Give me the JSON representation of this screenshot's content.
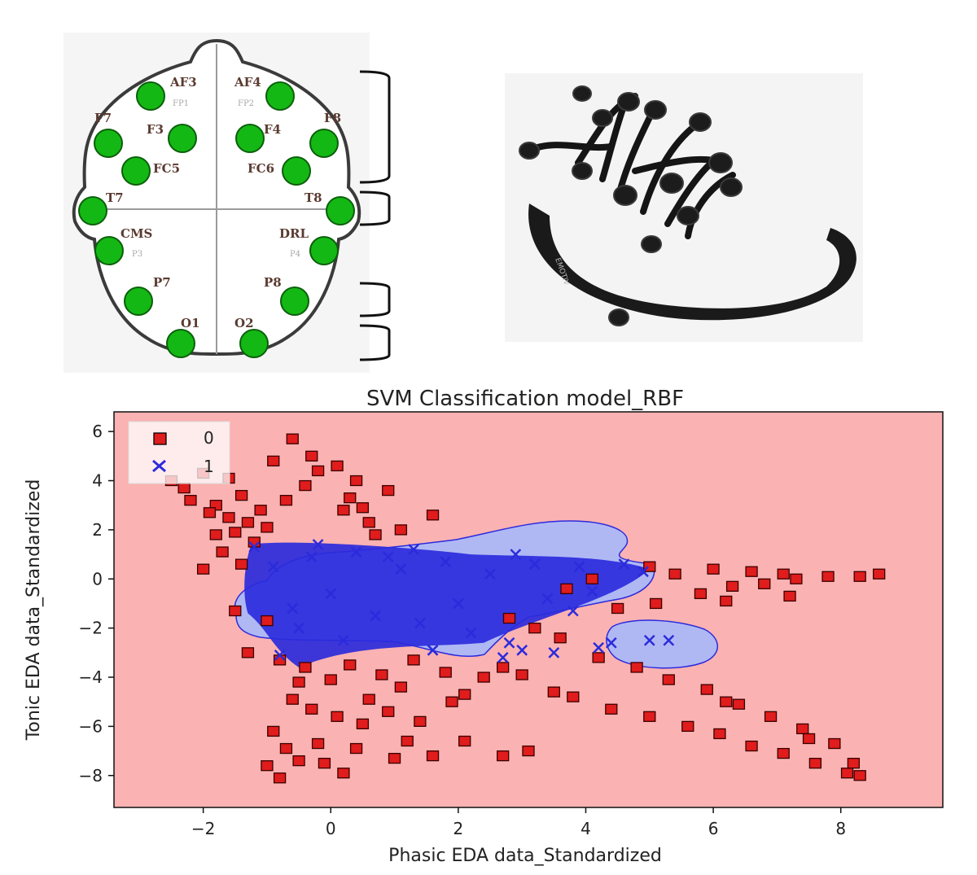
{
  "electrodes": [
    {
      "label": "AF3",
      "sub": "FP1"
    },
    {
      "label": "AF4",
      "sub": "FP2"
    },
    {
      "label": "F7",
      "sub": ""
    },
    {
      "label": "F3",
      "sub": ""
    },
    {
      "label": "F4",
      "sub": ""
    },
    {
      "label": "F8",
      "sub": ""
    },
    {
      "label": "FC5",
      "sub": ""
    },
    {
      "label": "FC6",
      "sub": ""
    },
    {
      "label": "T7",
      "sub": ""
    },
    {
      "label": "T8",
      "sub": ""
    },
    {
      "label": "CMS",
      "sub": "P3"
    },
    {
      "label": "DRL",
      "sub": "P4"
    },
    {
      "label": "P7",
      "sub": ""
    },
    {
      "label": "P8",
      "sub": ""
    },
    {
      "label": "O1",
      "sub": ""
    },
    {
      "label": "O2",
      "sub": ""
    }
  ],
  "headset": {
    "brand_text": "EMOTIV"
  },
  "colors": {
    "electrode": "#14b814",
    "class0_region": "#fbb2b2",
    "class1_region": "#b0b8f4",
    "class0_marker": "#e01c1c",
    "class1_marker": "#2b2bdc"
  },
  "chart_data": {
    "type": "scatter",
    "title": "SVM Classification model_RBF",
    "xlabel": "Phasic EDA data_Standardized",
    "ylabel": "Tonic EDA data_Standardized",
    "xlim": [
      -3.4,
      9.6
    ],
    "ylim": [
      -9.3,
      6.8
    ],
    "xticks": [
      -2,
      0,
      2,
      4,
      6,
      8
    ],
    "yticks": [
      -8,
      -6,
      -4,
      -2,
      0,
      2,
      4,
      6
    ],
    "tick_labels_x": [
      "−2",
      "0",
      "2",
      "4",
      "6",
      "8"
    ],
    "tick_labels_y": [
      "−8",
      "−6",
      "−4",
      "−2",
      "0",
      "2",
      "4",
      "6"
    ],
    "legend": {
      "placement": "top-left",
      "entries": [
        "0",
        "1"
      ]
    },
    "series": [
      {
        "name": "0",
        "marker": "square",
        "color": "#e01c1c",
        "points": [
          [
            -2.5,
            4.0
          ],
          [
            -2.3,
            3.7
          ],
          [
            -2.0,
            4.3
          ],
          [
            -1.8,
            3.0
          ],
          [
            -1.6,
            2.5
          ],
          [
            -1.9,
            2.7
          ],
          [
            -1.5,
            1.9
          ],
          [
            -1.3,
            2.3
          ],
          [
            -1.7,
            1.1
          ],
          [
            -1.4,
            0.6
          ],
          [
            -1.2,
            1.5
          ],
          [
            -1.0,
            2.1
          ],
          [
            -0.9,
            4.8
          ],
          [
            -0.6,
            5.7
          ],
          [
            -0.3,
            5.0
          ],
          [
            0.1,
            4.6
          ],
          [
            0.3,
            3.3
          ],
          [
            0.6,
            2.3
          ],
          [
            0.4,
            4.0
          ],
          [
            0.2,
            2.8
          ],
          [
            -0.4,
            3.8
          ],
          [
            -0.7,
            3.2
          ],
          [
            -1.1,
            2.8
          ],
          [
            -1.4,
            3.4
          ],
          [
            -1.6,
            4.1
          ],
          [
            -0.2,
            4.4
          ],
          [
            0.5,
            2.9
          ],
          [
            0.7,
            1.8
          ],
          [
            -1.0,
            -1.7
          ],
          [
            -0.8,
            -3.3
          ],
          [
            -0.5,
            -4.2
          ],
          [
            -0.3,
            -5.3
          ],
          [
            -0.9,
            -6.2
          ],
          [
            -1.0,
            -7.6
          ],
          [
            -0.8,
            -8.1
          ],
          [
            -0.5,
            -7.4
          ],
          [
            -0.2,
            -6.7
          ],
          [
            0.1,
            -5.6
          ],
          [
            0.2,
            -7.9
          ],
          [
            0.4,
            -6.9
          ],
          [
            0.6,
            -4.9
          ],
          [
            0.9,
            -5.4
          ],
          [
            1.0,
            -7.3
          ],
          [
            1.2,
            -6.6
          ],
          [
            0.8,
            -3.9
          ],
          [
            1.1,
            -4.4
          ],
          [
            1.4,
            -5.8
          ],
          [
            1.6,
            -7.2
          ],
          [
            1.3,
            -3.3
          ],
          [
            1.8,
            -3.8
          ],
          [
            2.1,
            -4.7
          ],
          [
            2.4,
            -4.0
          ],
          [
            2.7,
            -3.6
          ],
          [
            3.0,
            -3.9
          ],
          [
            -0.6,
            -4.9
          ],
          [
            -0.4,
            -3.6
          ],
          [
            0.0,
            -4.1
          ],
          [
            0.3,
            -3.5
          ],
          [
            -0.7,
            -6.9
          ],
          [
            0.5,
            -5.9
          ],
          [
            -0.1,
            -7.5
          ],
          [
            2.1,
            -6.6
          ],
          [
            2.7,
            -7.2
          ],
          [
            3.1,
            -7.0
          ],
          [
            1.9,
            -5.0
          ],
          [
            3.5,
            -4.6
          ],
          [
            3.8,
            -4.8
          ],
          [
            4.4,
            -5.3
          ],
          [
            5.0,
            -5.6
          ],
          [
            5.6,
            -6.0
          ],
          [
            6.1,
            -6.3
          ],
          [
            6.6,
            -6.8
          ],
          [
            7.1,
            -7.1
          ],
          [
            7.6,
            -7.5
          ],
          [
            8.1,
            -7.9
          ],
          [
            8.3,
            -8.0
          ],
          [
            4.2,
            -3.2
          ],
          [
            4.8,
            -3.6
          ],
          [
            5.3,
            -4.1
          ],
          [
            5.9,
            -4.5
          ],
          [
            6.4,
            -5.1
          ],
          [
            6.9,
            -5.6
          ],
          [
            7.4,
            -6.1
          ],
          [
            7.9,
            -6.7
          ],
          [
            8.2,
            -7.5
          ],
          [
            7.5,
            -6.5
          ],
          [
            6.2,
            -5.0
          ],
          [
            3.6,
            -2.4
          ],
          [
            3.2,
            -2.0
          ],
          [
            2.8,
            -1.6
          ],
          [
            4.5,
            -1.2
          ],
          [
            5.1,
            -1.0
          ],
          [
            5.8,
            -0.6
          ],
          [
            6.3,
            -0.3
          ],
          [
            6.8,
            -0.2
          ],
          [
            7.3,
            0.0
          ],
          [
            7.8,
            0.1
          ],
          [
            8.3,
            0.1
          ],
          [
            8.6,
            0.2
          ],
          [
            6.0,
            0.4
          ],
          [
            6.6,
            0.3
          ],
          [
            7.1,
            0.2
          ],
          [
            5.4,
            0.2
          ],
          [
            5.0,
            0.5
          ],
          [
            4.1,
            0.0
          ],
          [
            3.7,
            -0.4
          ],
          [
            6.2,
            -0.9
          ],
          [
            7.2,
            -0.7
          ],
          [
            1.6,
            2.6
          ],
          [
            1.1,
            2.0
          ],
          [
            0.9,
            3.6
          ],
          [
            -1.5,
            -1.3
          ],
          [
            -1.3,
            -3.0
          ],
          [
            -2.0,
            0.4
          ],
          [
            -1.8,
            1.8
          ],
          [
            -2.2,
            3.2
          ]
        ]
      },
      {
        "name": "1",
        "marker": "x",
        "color": "#2b2bdc",
        "points": [
          [
            -1.2,
            1.3
          ],
          [
            -0.9,
            0.5
          ],
          [
            -0.6,
            -1.2
          ],
          [
            -0.3,
            0.9
          ],
          [
            0.0,
            -0.6
          ],
          [
            0.4,
            1.1
          ],
          [
            0.7,
            -1.5
          ],
          [
            1.1,
            0.4
          ],
          [
            1.4,
            -1.8
          ],
          [
            1.8,
            0.7
          ],
          [
            2.2,
            -2.2
          ],
          [
            2.5,
            0.2
          ],
          [
            2.8,
            -2.6
          ],
          [
            3.2,
            0.6
          ],
          [
            3.5,
            -3.0
          ],
          [
            3.9,
            0.5
          ],
          [
            4.2,
            -2.8
          ],
          [
            4.6,
            0.6
          ],
          [
            4.9,
            0.3
          ],
          [
            4.4,
            -2.6
          ],
          [
            5.0,
            -2.5
          ],
          [
            5.3,
            -2.5
          ],
          [
            2.7,
            -3.2
          ],
          [
            3.0,
            -2.9
          ],
          [
            -0.8,
            -3.1
          ],
          [
            -0.5,
            -2.0
          ],
          [
            0.2,
            -2.5
          ],
          [
            1.6,
            -2.9
          ],
          [
            2.0,
            -1.0
          ],
          [
            3.4,
            -0.8
          ],
          [
            3.8,
            -1.3
          ],
          [
            4.1,
            -0.5
          ],
          [
            0.9,
            0.9
          ],
          [
            -0.2,
            1.4
          ],
          [
            1.3,
            1.2
          ],
          [
            2.9,
            1.0
          ]
        ]
      }
    ]
  }
}
